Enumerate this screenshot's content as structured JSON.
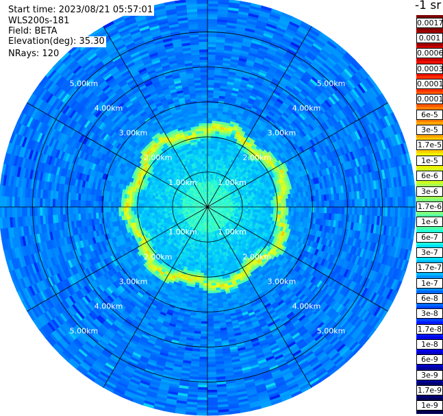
{
  "info": {
    "start_time": "Start time: 2023/08/21 05:57:01",
    "device": "WLS200s-181",
    "field": "Field: BETA",
    "elevation": "Elevation(deg): 35.30",
    "nrays": "NRays: 120"
  },
  "colorbar": {
    "title": "-1 sr",
    "labels": [
      "0.0017",
      "0.001",
      "0.0006",
      "0.0003",
      "0.00017",
      "0.0001",
      "6e-5",
      "3e-5",
      "1.7e-5",
      "1e-5",
      "6e-6",
      "3e-6",
      "1.7e-6",
      "1e-6",
      "6e-7",
      "3e-7",
      "1.7e-7",
      "1e-7",
      "6e-8",
      "3e-8",
      "1.7e-8",
      "1e-8",
      "6e-9",
      "3e-9",
      "1.7e-9",
      "1e-9"
    ],
    "colors": [
      "#7f0000",
      "#a00000",
      "#cc0000",
      "#ee1000",
      "#ff3000",
      "#ff5800",
      "#ff8000",
      "#ffa500",
      "#ffcc00",
      "#f0f000",
      "#d0ff20",
      "#a8ff50",
      "#80ff80",
      "#50ffa8",
      "#20ffd8",
      "#00e0ff",
      "#00b8ff",
      "#0090ff",
      "#0068ff",
      "#0040ff",
      "#0018ff",
      "#0000e6",
      "#0000c0",
      "#000098",
      "#000070",
      "#000050"
    ]
  },
  "chart_data": {
    "type": "heatmap",
    "projection": "polar (PPI scan)",
    "field": "BETA",
    "unit": "-1 sr",
    "color_scale": "log",
    "value_range": [
      1e-09,
      0.0017
    ],
    "rays": 120,
    "range_ring_labels": [
      "1.00km",
      "2.00km",
      "3.00km",
      "4.00km",
      "5.00km"
    ],
    "range_rings_km": [
      1,
      2,
      3,
      4,
      5
    ],
    "max_range_km": 5.95,
    "spokes_deg": [
      0,
      30,
      60,
      90,
      120,
      150,
      180,
      210,
      240,
      270,
      300,
      330
    ],
    "features": [
      {
        "description": "enhanced backscatter ring",
        "range_km": [
          2.0,
          2.4
        ],
        "value_approx": 1.7e-05
      },
      {
        "description": "near-field region",
        "range_km": [
          0,
          1.5
        ],
        "value_approx": 1e-06
      },
      {
        "description": "far-field background",
        "range_km": [
          3.0,
          5.95
        ],
        "value_approx": 1e-07
      }
    ]
  }
}
